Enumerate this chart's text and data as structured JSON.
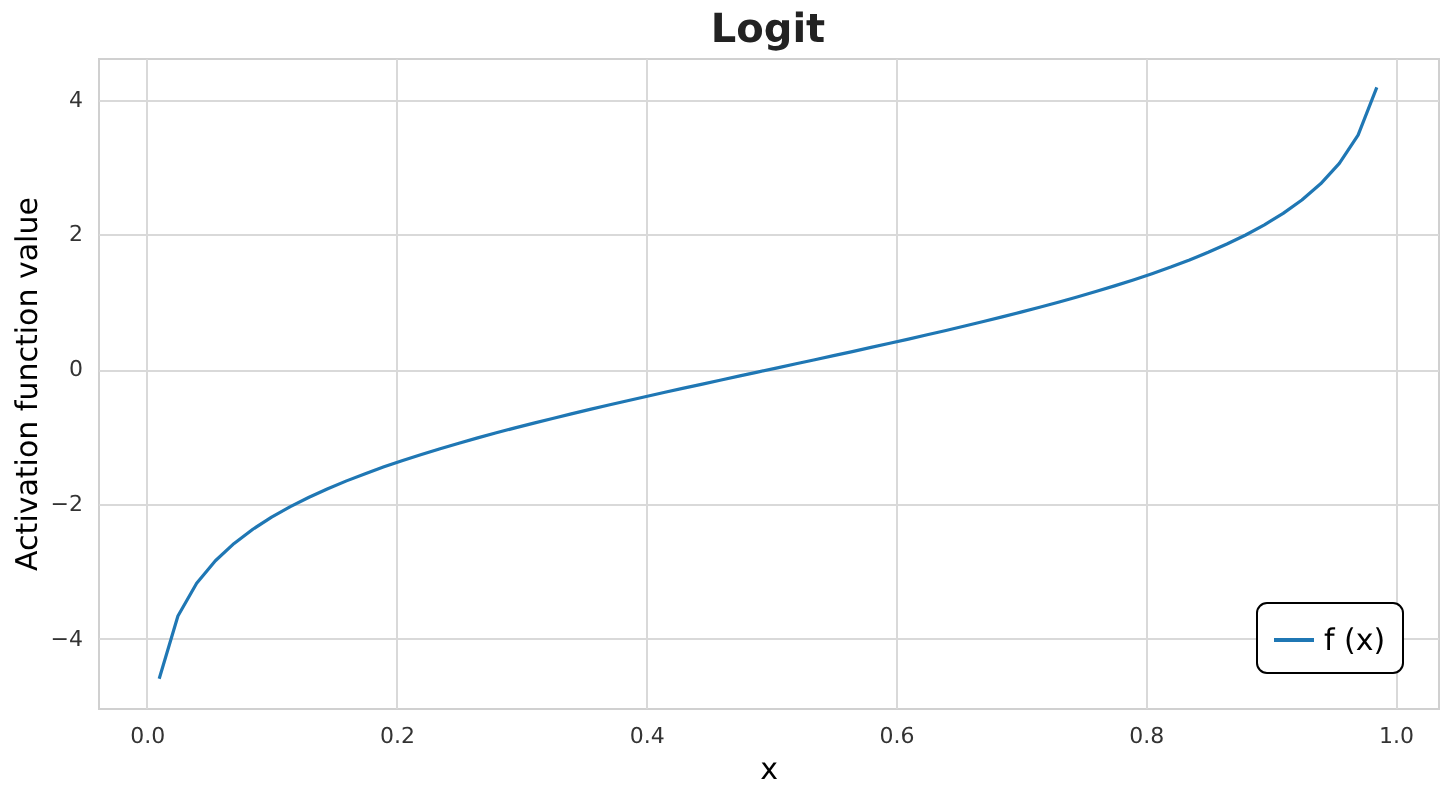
{
  "chart_data": {
    "type": "line",
    "title": "Logit",
    "xlabel": "x",
    "ylabel": "Activation function value",
    "x": [
      0.01,
      0.025,
      0.04,
      0.055,
      0.07,
      0.085,
      0.1,
      0.115,
      0.13,
      0.145,
      0.16,
      0.175,
      0.19,
      0.205,
      0.22,
      0.235,
      0.25,
      0.265,
      0.28,
      0.295,
      0.31,
      0.325,
      0.34,
      0.355,
      0.37,
      0.385,
      0.4,
      0.415,
      0.43,
      0.445,
      0.46,
      0.475,
      0.49,
      0.505,
      0.52,
      0.535,
      0.55,
      0.565,
      0.58,
      0.595,
      0.61,
      0.625,
      0.64,
      0.655,
      0.67,
      0.685,
      0.7,
      0.715,
      0.73,
      0.745,
      0.76,
      0.775,
      0.79,
      0.805,
      0.82,
      0.835,
      0.85,
      0.865,
      0.88,
      0.895,
      0.91,
      0.925,
      0.94,
      0.955,
      0.97,
      0.985
    ],
    "series": [
      {
        "name": "f (x)",
        "color": "#1f77b4",
        "values": [
          -4.595,
          -3.664,
          -3.178,
          -2.844,
          -2.587,
          -2.376,
          -2.197,
          -2.041,
          -1.901,
          -1.774,
          -1.658,
          -1.551,
          -1.45,
          -1.355,
          -1.266,
          -1.18,
          -1.099,
          -1.02,
          -0.944,
          -0.871,
          -0.8,
          -0.731,
          -0.663,
          -0.597,
          -0.532,
          -0.468,
          -0.405,
          -0.343,
          -0.282,
          -0.221,
          -0.16,
          -0.1,
          -0.04,
          0.02,
          0.08,
          0.14,
          0.201,
          0.261,
          0.323,
          0.385,
          0.447,
          0.511,
          0.575,
          0.641,
          0.708,
          0.777,
          0.847,
          0.92,
          0.995,
          1.072,
          1.153,
          1.237,
          1.325,
          1.418,
          1.516,
          1.621,
          1.735,
          1.858,
          1.992,
          2.143,
          2.314,
          2.512,
          2.752,
          3.055,
          3.476,
          4.185
        ]
      }
    ],
    "xlim": [
      -0.039,
      1.034
    ],
    "ylim": [
      -5.03,
      4.62
    ],
    "xticks": [
      {
        "value": 0,
        "label": "0.0"
      },
      0.2,
      0.4,
      0.6,
      0.8,
      {
        "value": 1,
        "label": "1.0"
      }
    ],
    "yticks": [
      {
        "value": -4,
        "label": "−4"
      },
      {
        "value": -2,
        "label": "−2"
      },
      0,
      2,
      4
    ],
    "grid": true,
    "legend": "bottom right",
    "marker": "none",
    "line_style": "solid"
  }
}
